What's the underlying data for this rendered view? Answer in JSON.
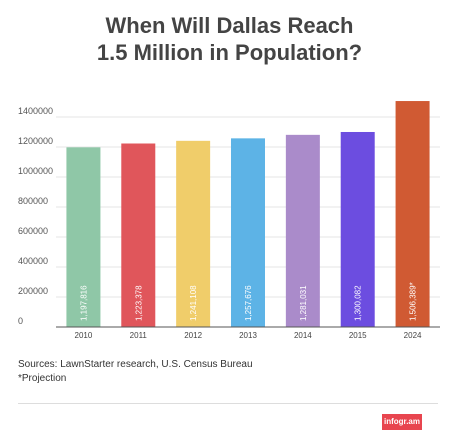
{
  "title": {
    "line1": "When Will Dallas Reach",
    "line2": "1.5 Million in Population?"
  },
  "chart_data": {
    "type": "bar",
    "title": "When Will Dallas Reach 1.5 Million in Population?",
    "categories": [
      "2010",
      "2011",
      "2012",
      "2013",
      "2014",
      "2015",
      "2024"
    ],
    "values": [
      1197816,
      1223378,
      1241108,
      1257676,
      1281031,
      1300082,
      1506389
    ],
    "data_labels": [
      "1,197,816",
      "1,223,378",
      "1,241,108",
      "1,257,676",
      "1,281,031",
      "1,300,082",
      "1,506,389*"
    ],
    "colors": [
      "#8fc7a7",
      "#e0565b",
      "#f0cd6a",
      "#5db3e6",
      "#aa8bca",
      "#6c4de0",
      "#d05a33"
    ],
    "ylim": [
      0,
      1500000
    ],
    "yticks": [
      0,
      200000,
      400000,
      600000,
      800000,
      1000000,
      1200000,
      1400000
    ],
    "ytick_labels": [
      "0",
      "200000",
      "400000",
      "600000",
      "800000",
      "1000000",
      "1200000",
      "1400000"
    ],
    "grid": true,
    "xlabel": "",
    "ylabel": ""
  },
  "footer": {
    "source": "Sources: LawnStarter research, U.S. Census Bureau",
    "note": "*Projection",
    "brand": "infogr.am"
  }
}
